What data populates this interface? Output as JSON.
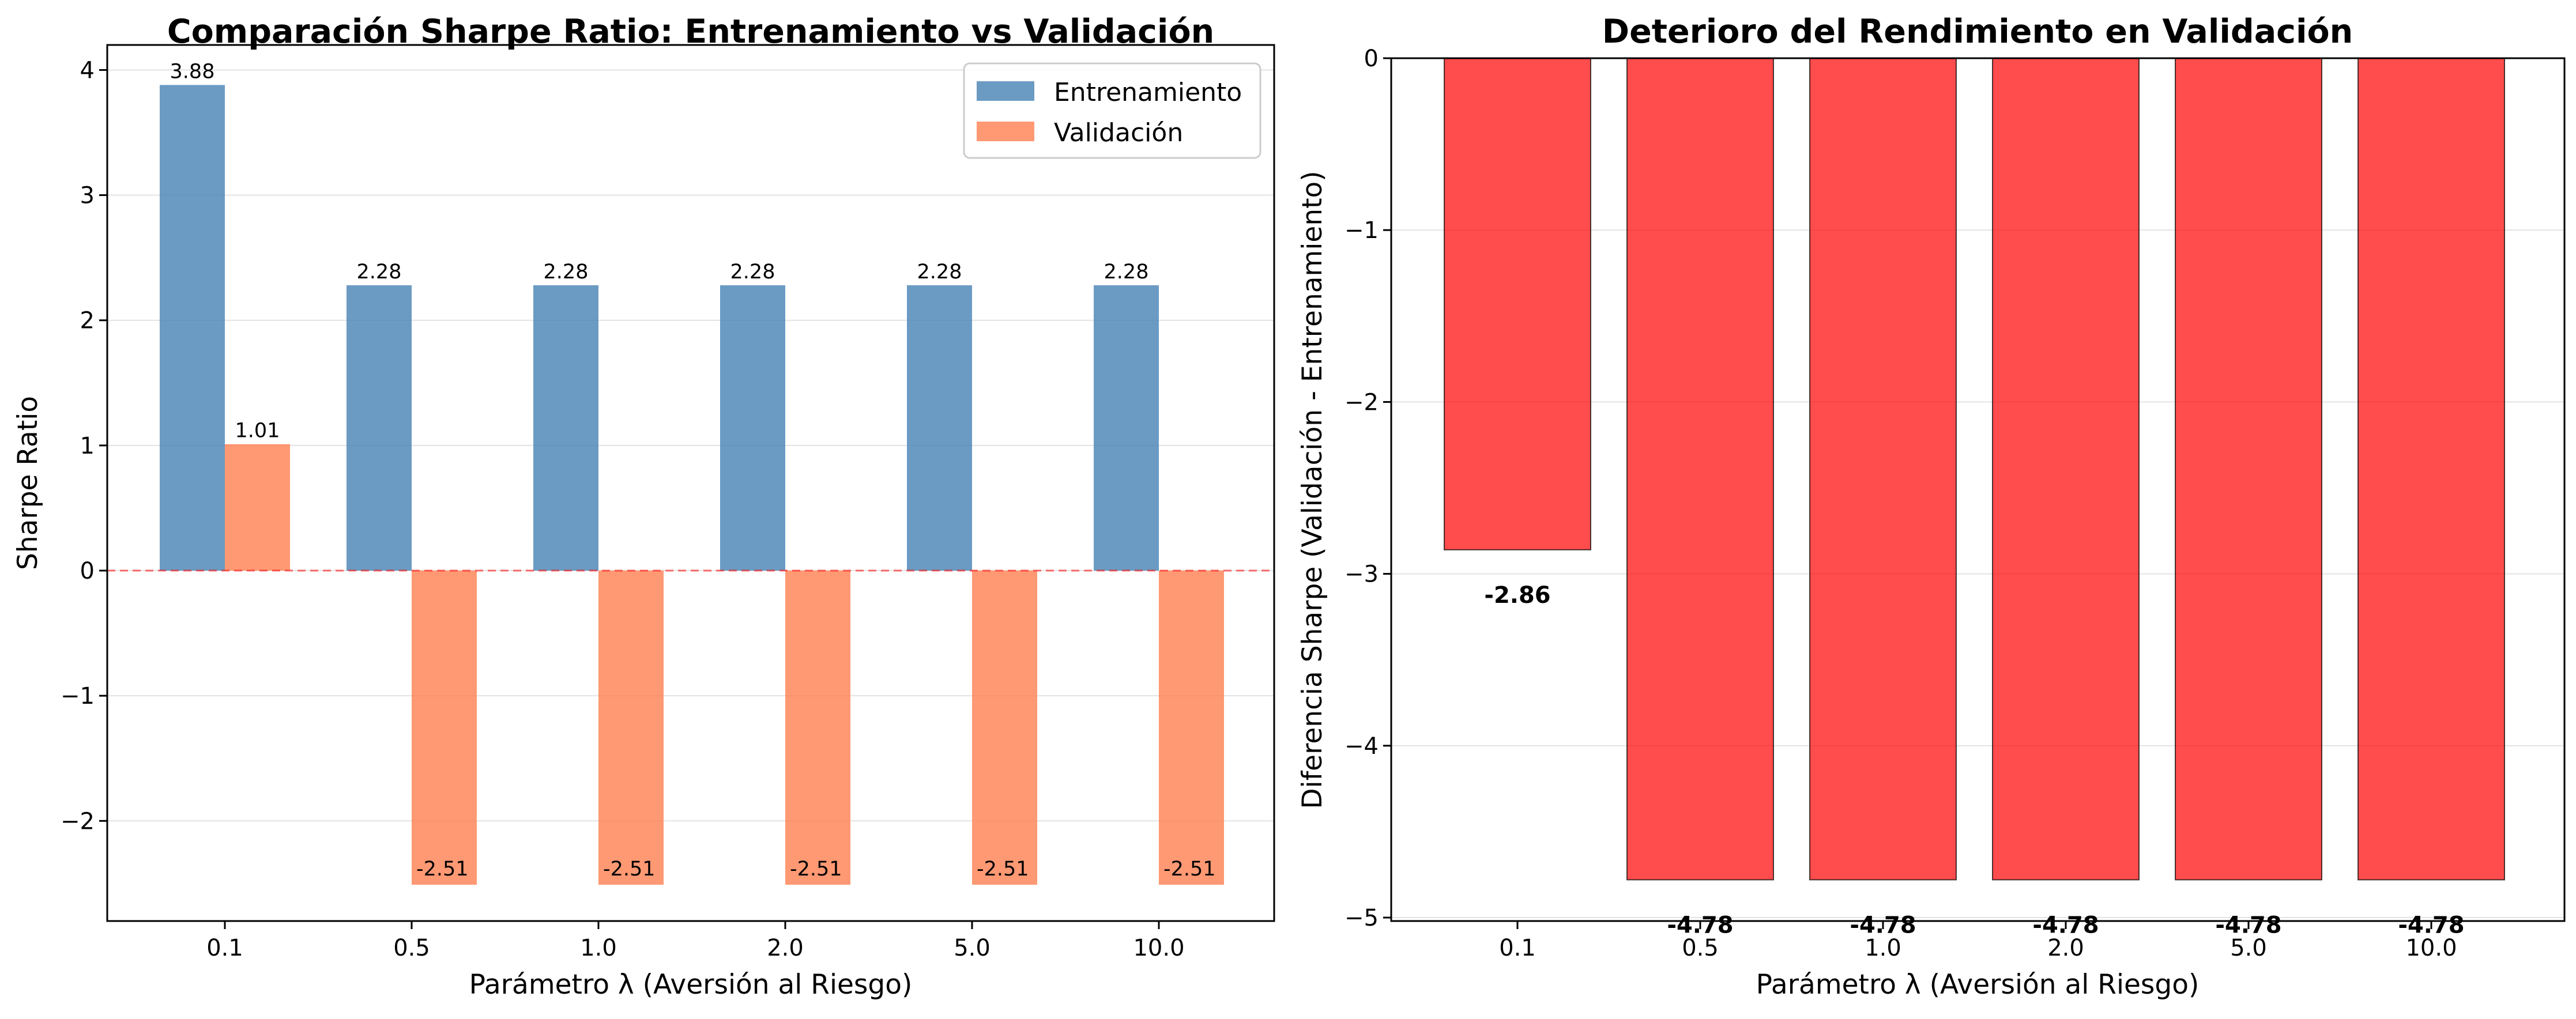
{
  "chart_data": [
    {
      "type": "bar",
      "title": "Comparación Sharpe Ratio: Entrenamiento vs Validación",
      "xlabel": "Parámetro λ (Aversión al Riesgo)",
      "ylabel": "Sharpe Ratio",
      "categories": [
        "0.1",
        "0.5",
        "1.0",
        "2.0",
        "5.0",
        "10.0"
      ],
      "series": [
        {
          "name": "Entrenamiento",
          "values": [
            3.88,
            2.28,
            2.28,
            2.28,
            2.28,
            2.28
          ],
          "labels": [
            "3.88",
            "2.28",
            "2.28",
            "2.28",
            "2.28",
            "2.28"
          ],
          "color": "#4682b4"
        },
        {
          "name": "Validación",
          "values": [
            1.01,
            -2.51,
            -2.51,
            -2.51,
            -2.51,
            -2.51
          ],
          "labels": [
            "1.01",
            "-2.51",
            "-2.51",
            "-2.51",
            "-2.51",
            "-2.51"
          ],
          "color": "#ff7f50"
        }
      ],
      "ylim": [
        -2.8,
        4.2
      ],
      "yticks": [
        -2,
        -1,
        0,
        1,
        2,
        3,
        4
      ],
      "ytick_labels": [
        "−2",
        "−1",
        "0",
        "1",
        "2",
        "3",
        "4"
      ],
      "reference_line": {
        "y": 0,
        "color": "#ff0000",
        "style": "dashed"
      },
      "grid": "horizontal",
      "legend": "top-right"
    },
    {
      "type": "bar",
      "title": "Deterioro del Rendimiento en Validación",
      "xlabel": "Parámetro λ (Aversión al Riesgo)",
      "ylabel": "Diferencia Sharpe (Validación - Entrenamiento)",
      "categories": [
        "0.1",
        "0.5",
        "1.0",
        "2.0",
        "5.0",
        "10.0"
      ],
      "values": [
        -2.86,
        -4.78,
        -4.78,
        -4.78,
        -4.78,
        -4.78
      ],
      "labels": [
        "-2.86",
        "-4.78",
        "-4.78",
        "-4.78",
        "-4.78",
        "-4.78"
      ],
      "color": "#ff0000",
      "ylim": [
        -5.02,
        0
      ],
      "yticks": [
        -5,
        -4,
        -3,
        -2,
        -1,
        0
      ],
      "ytick_labels": [
        "−5",
        "−4",
        "−3",
        "−2",
        "−1",
        "0"
      ],
      "grid": "horizontal"
    }
  ]
}
